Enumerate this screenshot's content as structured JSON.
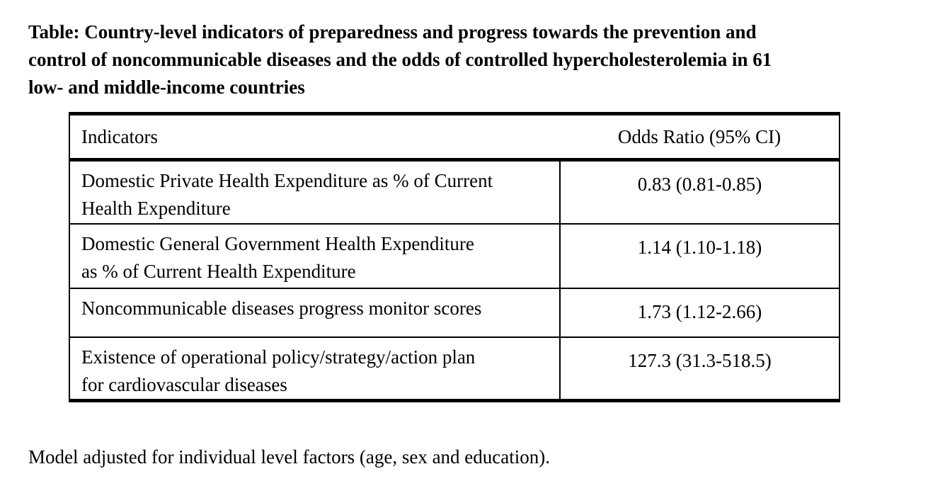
{
  "page": {
    "background_color": "#ffffff",
    "text_color": "#000000",
    "border_color": "#000000"
  },
  "title": {
    "lines": [
      "Table: Country-level indicators of preparedness and progress towards the prevention and",
      "control of noncommunicable diseases and the odds of controlled hypercholesterolemia in 61",
      "low- and middle-income countries"
    ]
  },
  "table": {
    "header": {
      "indicators": "Indicators",
      "odds_ratio": "Odds Ratio (95% CI)"
    },
    "rows": [
      {
        "indicator_lines": [
          "Domestic Private Health Expenditure as % of Current",
          "Health Expenditure"
        ],
        "indicator": "Domestic Private Health Expenditure as % of Current Health Expenditure",
        "odds_ratio": "0.83 (0.81-0.85)"
      },
      {
        "indicator_lines": [
          "Domestic General Government Health Expenditure",
          "as % of Current Health Expenditure"
        ],
        "indicator": "Domestic General Government Health Expenditure as % of Current Health Expenditure",
        "odds_ratio": "1.14 (1.10-1.18)"
      },
      {
        "indicator_lines": [
          "Noncommunicable diseases progress monitor scores"
        ],
        "indicator": "Noncommunicable diseases progress monitor scores",
        "odds_ratio": "1.73 (1.12-2.66)"
      },
      {
        "indicator_lines": [
          "Existence of operational policy/strategy/action plan",
          "for cardiovascular diseases"
        ],
        "indicator": "Existence of operational policy/strategy/action plan for cardiovascular diseases",
        "odds_ratio": "127.3 (31.3-518.5)"
      }
    ]
  },
  "footnote": "Model adjusted for individual level factors (age, sex and education)."
}
